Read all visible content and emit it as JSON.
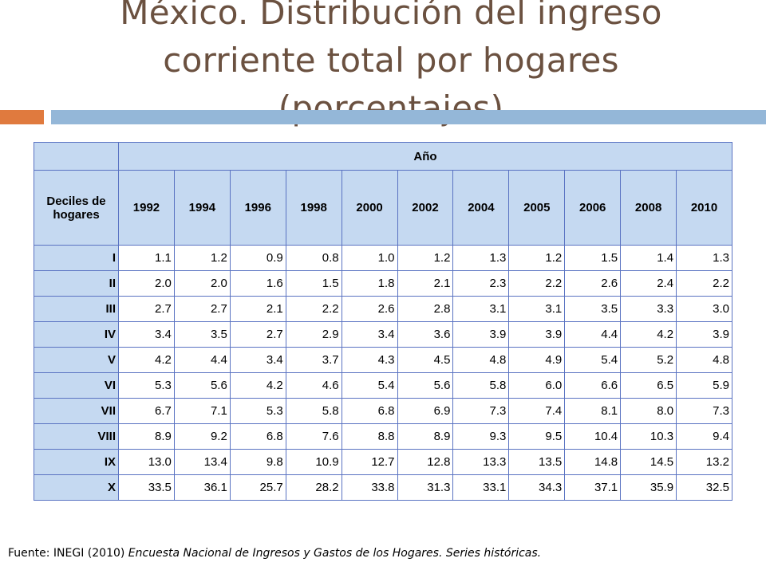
{
  "title": {
    "line1": "México. Distribución del ingreso",
    "line2": "corriente total por hogares",
    "line3": "(porcentajes)"
  },
  "table": {
    "year_group_label": "Año",
    "row_header": "Deciles de hogares",
    "years": [
      "1992",
      "1994",
      "1996",
      "1998",
      "2000",
      "2002",
      "2004",
      "2005",
      "2006",
      "2008",
      "2010"
    ],
    "rows": [
      {
        "decile": "I",
        "values": [
          "1.1",
          "1.2",
          "0.9",
          "0.8",
          "1.0",
          "1.2",
          "1.3",
          "1.2",
          "1.5",
          "1.4",
          "1.3"
        ]
      },
      {
        "decile": "II",
        "values": [
          "2.0",
          "2.0",
          "1.6",
          "1.5",
          "1.8",
          "2.1",
          "2.3",
          "2.2",
          "2.6",
          "2.4",
          "2.2"
        ]
      },
      {
        "decile": "III",
        "values": [
          "2.7",
          "2.7",
          "2.1",
          "2.2",
          "2.6",
          "2.8",
          "3.1",
          "3.1",
          "3.5",
          "3.3",
          "3.0"
        ]
      },
      {
        "decile": "IV",
        "values": [
          "3.4",
          "3.5",
          "2.7",
          "2.9",
          "3.4",
          "3.6",
          "3.9",
          "3.9",
          "4.4",
          "4.2",
          "3.9"
        ]
      },
      {
        "decile": "V",
        "values": [
          "4.2",
          "4.4",
          "3.4",
          "3.7",
          "4.3",
          "4.5",
          "4.8",
          "4.9",
          "5.4",
          "5.2",
          "4.8"
        ]
      },
      {
        "decile": "VI",
        "values": [
          "5.3",
          "5.6",
          "4.2",
          "4.6",
          "5.4",
          "5.6",
          "5.8",
          "6.0",
          "6.6",
          "6.5",
          "5.9"
        ]
      },
      {
        "decile": "VII",
        "values": [
          "6.7",
          "7.1",
          "5.3",
          "5.8",
          "6.8",
          "6.9",
          "7.3",
          "7.4",
          "8.1",
          "8.0",
          "7.3"
        ]
      },
      {
        "decile": "VIII",
        "values": [
          "8.9",
          "9.2",
          "6.8",
          "7.6",
          "8.8",
          "8.9",
          "9.3",
          "9.5",
          "10.4",
          "10.3",
          "9.4"
        ]
      },
      {
        "decile": "IX",
        "values": [
          "13.0",
          "13.4",
          "9.8",
          "10.9",
          "12.7",
          "12.8",
          "13.3",
          "13.5",
          "14.8",
          "14.5",
          "13.2"
        ]
      },
      {
        "decile": "X",
        "values": [
          "33.5",
          "36.1",
          "25.7",
          "28.2",
          "33.8",
          "31.3",
          "33.1",
          "34.3",
          "37.1",
          "35.9",
          "32.5"
        ]
      }
    ]
  },
  "source": {
    "prefix": "Fuente: INEGI (2010) ",
    "italic": "Encuesta Nacional de Ingresos y Gastos de los Hogares. Series históricas."
  },
  "colors": {
    "title": "#6b5140",
    "header_fill": "#c5d9f1",
    "border": "#5a73c2",
    "accent_orange": "#e07a3e",
    "accent_blue": "#94b7d8"
  }
}
